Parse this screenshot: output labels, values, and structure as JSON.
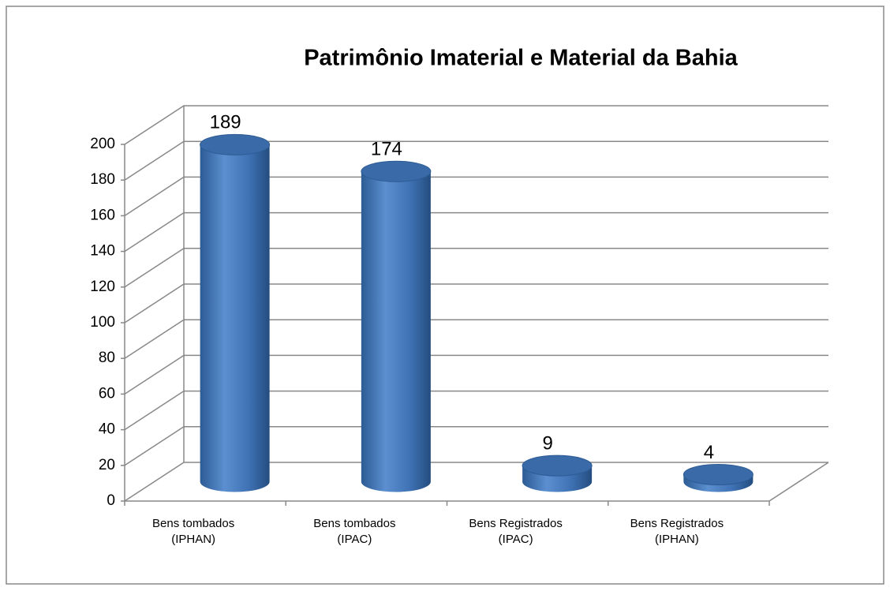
{
  "chart_data": {
    "type": "bar3d",
    "title": "Patrimônio Imaterial e Material da Bahia",
    "categories": [
      "Bens tombados (IPHAN)",
      "Bens tombados (IPAC)",
      "Bens Registrados (IPAC)",
      "Bens Registrados (IPHAN)"
    ],
    "values": [
      189,
      174,
      9,
      4
    ],
    "color": "#4f81bd",
    "ylim": [
      0,
      200
    ],
    "yticks": [
      0,
      20,
      40,
      60,
      80,
      100,
      120,
      140,
      160,
      180,
      200
    ],
    "grid": true
  }
}
